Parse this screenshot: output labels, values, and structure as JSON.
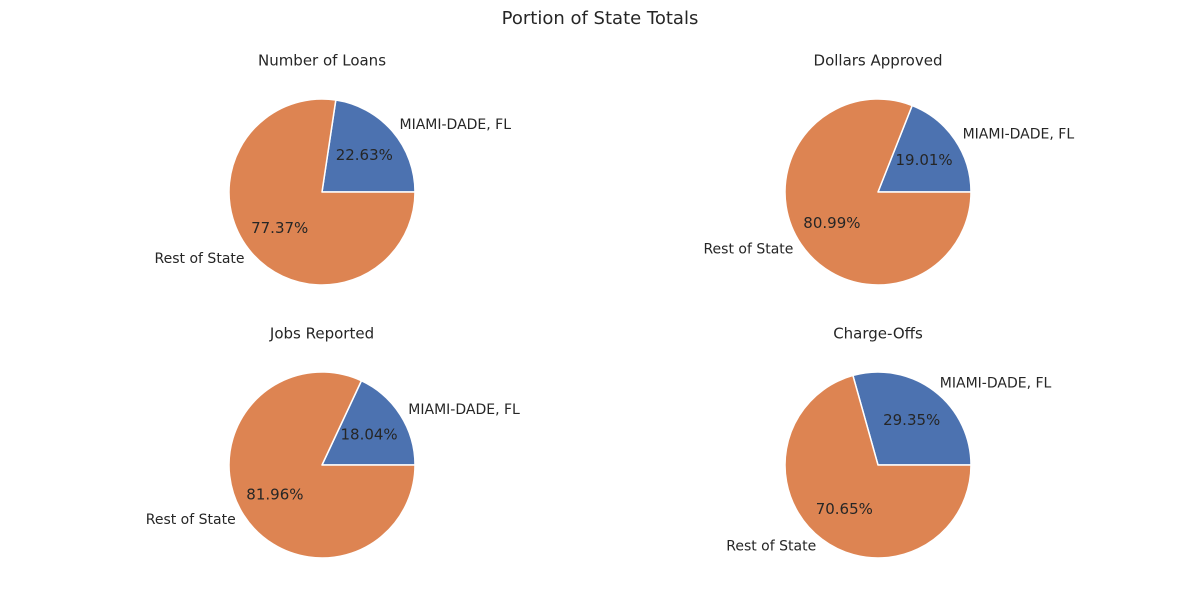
{
  "title": "Portion of State Totals",
  "colors": {
    "county": "#4c72b0",
    "rest": "#dd8452",
    "edge": "#ffffff"
  },
  "chart_data": [
    {
      "type": "pie",
      "title": "Number of Loans",
      "labels": [
        "MIAMI-DADE, FL",
        "Rest of State"
      ],
      "values": [
        22.63,
        77.37
      ],
      "pct_labels": [
        "22.63%",
        "77.37%"
      ]
    },
    {
      "type": "pie",
      "title": "Dollars Approved",
      "labels": [
        "MIAMI-DADE, FL",
        "Rest of State"
      ],
      "values": [
        19.01,
        80.99
      ],
      "pct_labels": [
        "19.01%",
        "80.99%"
      ]
    },
    {
      "type": "pie",
      "title": "Jobs Reported",
      "labels": [
        "MIAMI-DADE, FL",
        "Rest of State"
      ],
      "values": [
        18.04,
        81.96
      ],
      "pct_labels": [
        "18.04%",
        "81.96%"
      ]
    },
    {
      "type": "pie",
      "title": "Charge-Offs",
      "labels": [
        "MIAMI-DADE, FL",
        "Rest of State"
      ],
      "values": [
        29.35,
        70.65
      ],
      "pct_labels": [
        "29.35%",
        "70.65%"
      ]
    }
  ]
}
